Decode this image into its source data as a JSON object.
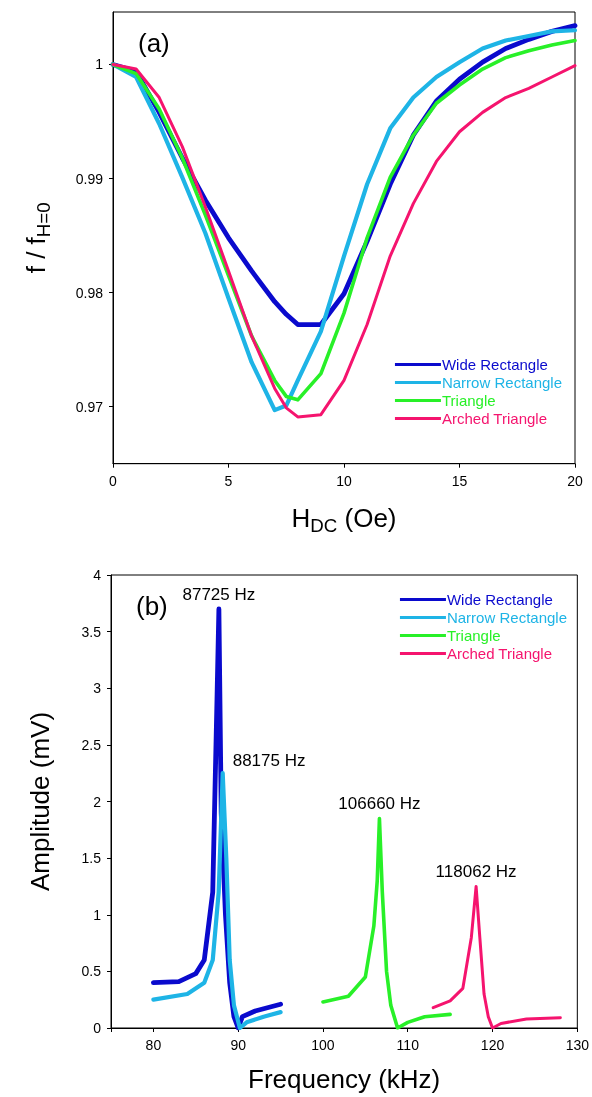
{
  "chart_data": [
    {
      "type": "line",
      "xlabel": "H$_{DC}$ (Oe)",
      "ylabel": "f / f$_{H=0}$",
      "xlim": [
        0,
        20
      ],
      "xticks": [
        0,
        5,
        10,
        15,
        20
      ],
      "ylim": [
        0.965,
        1.0046
      ],
      "yticks": [
        0.97,
        0.98,
        0.99,
        1
      ],
      "grid": false,
      "legend": "bottom right",
      "marker": "none",
      "line_style": "solid",
      "annotations": [
        "(a)"
      ],
      "x": [
        0,
        1,
        2,
        3,
        4,
        5,
        6,
        7,
        7.5,
        8,
        9,
        10,
        11,
        12,
        13,
        14,
        15,
        16,
        17,
        18,
        19,
        20
      ],
      "series": [
        {
          "name": "Wide Rectangle",
          "color": "#0a0acd",
          "values": [
            1,
            0.9994,
            0.9958,
            0.9918,
            0.9881,
            0.9848,
            0.9819,
            0.9792,
            0.9781,
            0.9772,
            0.9772,
            0.9799,
            0.9845,
            0.9895,
            0.9938,
            0.9968,
            0.9987,
            1.0002,
            1.0014,
            1.0022,
            1.0029,
            1.0034
          ]
        },
        {
          "name": "Narrow Rectangle",
          "color": "#1eb4e6",
          "values": [
            1,
            0.9989,
            0.9948,
            0.9901,
            0.9852,
            0.9795,
            0.9739,
            0.9697,
            0.9701,
            0.9723,
            0.9766,
            0.9832,
            0.9895,
            0.9944,
            0.9971,
            0.9989,
            1.0002,
            1.0014,
            1.0021,
            1.0025,
            1.0029,
            1.003
          ]
        },
        {
          "name": "Triangle",
          "color": "#28f028",
          "values": [
            1,
            0.9992,
            0.9961,
            0.9918,
            0.9868,
            0.9815,
            0.9762,
            0.9723,
            0.9709,
            0.9706,
            0.9729,
            0.9782,
            0.9848,
            0.9901,
            0.9938,
            0.9966,
            0.9982,
            0.9996,
            1.0006,
            1.0012,
            1.0017,
            1.0021
          ]
        },
        {
          "name": "Arched Triangle",
          "color": "#f5146e",
          "values": [
            1,
            0.9996,
            0.9971,
            0.9928,
            0.9875,
            0.9819,
            0.9762,
            0.9716,
            0.9699,
            0.9691,
            0.9693,
            0.9723,
            0.9772,
            0.9832,
            0.9878,
            0.9915,
            0.9941,
            0.9958,
            0.9971,
            0.9979,
            0.9989,
            0.9999
          ]
        }
      ]
    },
    {
      "type": "line",
      "xlabel": "Frequency (kHz)",
      "ylabel": "Amplitude (mV)",
      "xlim": [
        75,
        130
      ],
      "xticks": [
        {
          "value": 75,
          "label": null
        },
        80,
        90,
        100,
        110,
        120,
        130
      ],
      "ylim": [
        0,
        4
      ],
      "yticks": [
        0,
        0.5,
        1,
        1.5,
        2,
        2.5,
        3,
        3.5,
        4
      ],
      "grid": false,
      "legend": "top right",
      "marker": "none",
      "line_style": "solid",
      "annotations": [
        "(b)",
        {
          "text": "87725 Hz",
          "x": 87.725,
          "y": 3.7
        },
        {
          "text": "88175 Hz",
          "x": 88.175,
          "y": 2.25
        },
        {
          "text": "106660 Hz",
          "x": 106.66,
          "y": 1.85
        },
        {
          "text": "118062 Hz",
          "x": 118.062,
          "y": 1.25
        }
      ],
      "series": [
        {
          "name": "Wide Rectangle",
          "color": "#0a0acd",
          "x": [
            80,
            83,
            85,
            86,
            87,
            87.5,
            87.725,
            88,
            88.5,
            89,
            89.5,
            90,
            90.5,
            92,
            95
          ],
          "values": [
            0.4,
            0.41,
            0.48,
            0.6,
            1.2,
            2.9,
            3.7,
            1.9,
            1.0,
            0.4,
            0.1,
            0,
            0.1,
            0.15,
            0.21
          ]
        },
        {
          "name": "Narrow Rectangle",
          "color": "#1eb4e6",
          "x": [
            80,
            84,
            86,
            87,
            87.7,
            88.175,
            88.6,
            89,
            89.5,
            90.2,
            91,
            93,
            95
          ],
          "values": [
            0.25,
            0.3,
            0.4,
            0.6,
            1.2,
            2.25,
            1.5,
            0.6,
            0.2,
            0,
            0.05,
            0.1,
            0.14
          ]
        },
        {
          "name": "Triangle",
          "color": "#28f028",
          "x": [
            100,
            103,
            105,
            106,
            106.4,
            106.66,
            107,
            107.5,
            108,
            108.8,
            110,
            112,
            115
          ],
          "values": [
            0.23,
            0.28,
            0.45,
            0.9,
            1.3,
            1.85,
            1.2,
            0.5,
            0.2,
            0,
            0.05,
            0.1,
            0.12
          ]
        },
        {
          "name": "Arched Triangle",
          "color": "#f5146e",
          "x": [
            113,
            115,
            116.5,
            117.5,
            118.062,
            118.5,
            119,
            119.5,
            120,
            121,
            124,
            128
          ],
          "values": [
            0.18,
            0.24,
            0.35,
            0.8,
            1.25,
            0.8,
            0.3,
            0.1,
            0,
            0.04,
            0.08,
            0.09
          ]
        }
      ]
    }
  ]
}
